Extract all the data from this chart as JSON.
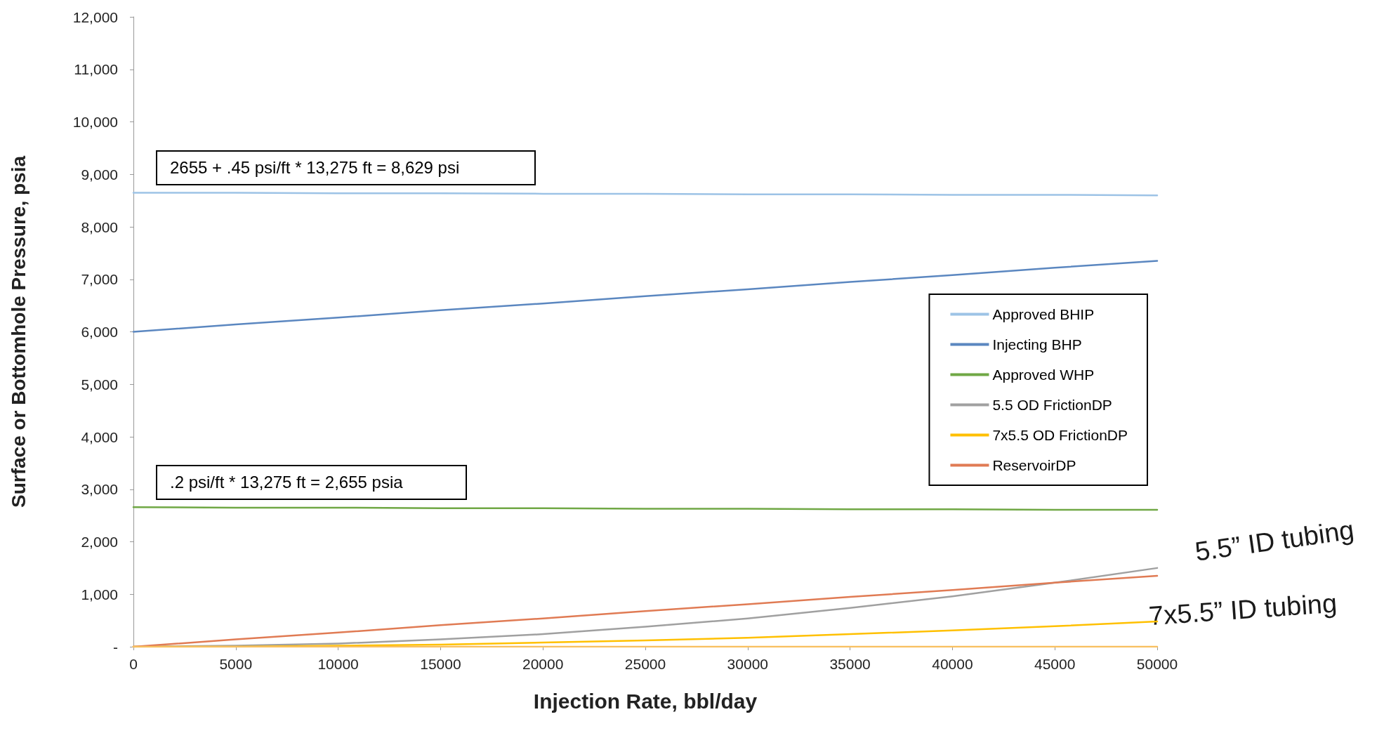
{
  "chart_data": {
    "type": "line",
    "xlabel": "Injection Rate, bbl/day",
    "ylabel": "Surface or Bottomhole Pressure, psia",
    "x": [
      0,
      5000,
      10000,
      15000,
      20000,
      25000,
      30000,
      35000,
      40000,
      45000,
      50000
    ],
    "series": [
      {
        "name": "Approved BHIP",
        "color": "#9dc3e6",
        "values": [
          8650,
          8650,
          8640,
          8640,
          8630,
          8630,
          8620,
          8620,
          8610,
          8610,
          8600
        ]
      },
      {
        "name": "Injecting BHP",
        "color": "#5b87c0",
        "values": [
          6000,
          6140,
          6270,
          6410,
          6540,
          6680,
          6810,
          6950,
          7080,
          7220,
          7350
        ]
      },
      {
        "name": "Approved WHP",
        "color": "#70a845",
        "values": [
          2660,
          2650,
          2650,
          2640,
          2640,
          2630,
          2630,
          2620,
          2620,
          2610,
          2610
        ]
      },
      {
        "name": "5.5 OD FrictionDP",
        "color": "#a0a0a0",
        "values": [
          0,
          20,
          60,
          140,
          240,
          380,
          540,
          740,
          960,
          1220,
          1500
        ]
      },
      {
        "name": "7x5.5 OD FrictionDP",
        "color": "#ffc000",
        "values": [
          0,
          0,
          20,
          40,
          80,
          120,
          170,
          240,
          310,
          390,
          480
        ]
      },
      {
        "name": "ReservoirDP",
        "color": "#e07b54",
        "values": [
          0,
          140,
          270,
          410,
          540,
          680,
          810,
          950,
          1080,
          1220,
          1350
        ]
      },
      {
        "color": "#f8c060",
        "values": [
          0,
          0,
          0,
          0,
          0,
          0,
          0,
          0,
          0,
          0,
          0
        ]
      }
    ],
    "xlim": [
      0,
      50000
    ],
    "xticks": [
      0,
      5000,
      10000,
      15000,
      20000,
      25000,
      30000,
      35000,
      40000,
      45000,
      50000
    ],
    "ylim": [
      0,
      12000
    ],
    "yticks": [
      {
        "value": 0,
        "label": "-"
      },
      {
        "value": 1000,
        "label": "1,000"
      },
      {
        "value": 2000,
        "label": "2,000"
      },
      {
        "value": 3000,
        "label": "3,000"
      },
      {
        "value": 4000,
        "label": "4,000"
      },
      {
        "value": 5000,
        "label": "5,000"
      },
      {
        "value": 6000,
        "label": "6,000"
      },
      {
        "value": 7000,
        "label": "7,000"
      },
      {
        "value": 8000,
        "label": "8,000"
      },
      {
        "value": 9000,
        "label": "9,000"
      },
      {
        "value": 10000,
        "label": "10,000"
      },
      {
        "value": 11000,
        "label": "11,000"
      },
      {
        "value": 12000,
        "label": "12,000"
      }
    ],
    "annotations": [
      "2655 + .45 psi/ft * 13,275  ft = 8,629 psi",
      ".2 psi/ft * 13,275  ft = 2,655  psia",
      "5.5” ID tubing",
      "7x5.5” ID tubing"
    ],
    "grid": false,
    "legend": "right",
    "marker": "none",
    "line_style": "solid"
  }
}
